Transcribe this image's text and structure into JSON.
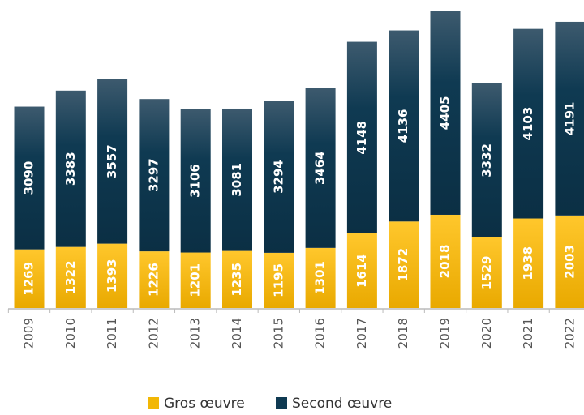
{
  "chart_data": {
    "type": "stacked_bar",
    "categories": [
      "2009",
      "2010",
      "2011",
      "2012",
      "2013",
      "2014",
      "2015",
      "2016",
      "2017",
      "2018",
      "2019",
      "2020",
      "2021",
      "2022"
    ],
    "series": [
      {
        "name": "Gros œuvre",
        "color": "#f2b705",
        "values": [
          1269,
          1322,
          1393,
          1226,
          1201,
          1235,
          1195,
          1301,
          1614,
          1872,
          2018,
          1529,
          1938,
          2003
        ]
      },
      {
        "name": "Second œuvre",
        "color": "#0f3a52",
        "values": [
          3090,
          3383,
          3557,
          3297,
          3106,
          3081,
          3294,
          3464,
          4148,
          4136,
          4405,
          3332,
          4103,
          4191
        ]
      }
    ]
  }
}
